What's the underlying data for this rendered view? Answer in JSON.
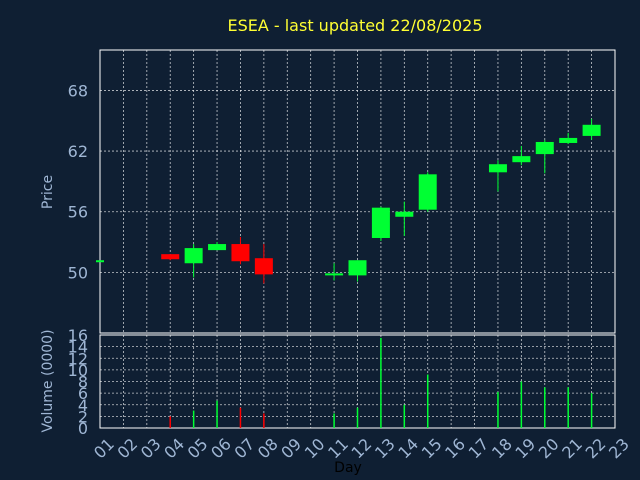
{
  "chart_data": [
    {
      "type": "candlestick",
      "title": "ESEA - last updated 22/08/2025",
      "xlabel": "Day",
      "ylabel": "Price",
      "ylim": [
        44,
        72
      ],
      "yticks": [
        50,
        56,
        62,
        68
      ],
      "grid": true,
      "colors": {
        "up": "#00ff33",
        "down": "#ff0000",
        "background": "#0f1f33",
        "title": "#ffff33",
        "ticks": "#9fb6d4"
      },
      "x_ticks": [
        "01",
        "02",
        "03",
        "04",
        "05",
        "06",
        "07",
        "08",
        "09",
        "10",
        "11",
        "12",
        "13",
        "14",
        "15",
        "16",
        "17",
        "18",
        "19",
        "20",
        "21",
        "22",
        "23"
      ],
      "candles": [
        {
          "day": "01",
          "open": 51.2,
          "high": 51.2,
          "low": 51.2,
          "close": 51.2
        },
        {
          "day": "04",
          "open": 51.8,
          "high": 51.8,
          "low": 51.2,
          "close": 51.3
        },
        {
          "day": "05",
          "open": 50.9,
          "high": 52.8,
          "low": 49.5,
          "close": 52.4
        },
        {
          "day": "06",
          "open": 52.2,
          "high": 53.0,
          "low": 52.2,
          "close": 52.8
        },
        {
          "day": "07",
          "open": 52.8,
          "high": 53.5,
          "low": 50.8,
          "close": 51.1
        },
        {
          "day": "08",
          "open": 51.4,
          "high": 52.8,
          "low": 48.9,
          "close": 49.8
        },
        {
          "day": "11",
          "open": 49.7,
          "high": 50.9,
          "low": 49.2,
          "close": 49.9
        },
        {
          "day": "12",
          "open": 49.7,
          "high": 51.2,
          "low": 49.1,
          "close": 51.2
        },
        {
          "day": "13",
          "open": 53.4,
          "high": 56.5,
          "low": 53.1,
          "close": 56.4
        },
        {
          "day": "14",
          "open": 55.5,
          "high": 57.0,
          "low": 53.6,
          "close": 56.0
        },
        {
          "day": "15",
          "open": 56.2,
          "high": 59.9,
          "low": 56.0,
          "close": 59.7
        },
        {
          "day": "18",
          "open": 59.9,
          "high": 61.1,
          "low": 58.0,
          "close": 60.7
        },
        {
          "day": "19",
          "open": 60.9,
          "high": 62.5,
          "low": 60.6,
          "close": 61.5
        },
        {
          "day": "20",
          "open": 61.7,
          "high": 63.1,
          "low": 59.8,
          "close": 62.9
        },
        {
          "day": "21",
          "open": 62.8,
          "high": 63.8,
          "low": 62.7,
          "close": 63.3
        },
        {
          "day": "22",
          "open": 63.5,
          "high": 65.2,
          "low": 63.1,
          "close": 64.6
        }
      ]
    },
    {
      "type": "bar",
      "ylabel": "Volume (0000)",
      "ylim": [
        0,
        16
      ],
      "yticks": [
        0,
        2,
        4,
        6,
        8,
        10,
        12,
        14,
        16
      ],
      "grid": true,
      "bars": [
        {
          "day": "04",
          "value": 2.0,
          "color": "#ff0000"
        },
        {
          "day": "05",
          "value": 3.0,
          "color": "#00ff33"
        },
        {
          "day": "06",
          "value": 4.7,
          "color": "#00ff33"
        },
        {
          "day": "07",
          "value": 3.5,
          "color": "#ff0000"
        },
        {
          "day": "08",
          "value": 2.5,
          "color": "#ff0000"
        },
        {
          "day": "11",
          "value": 2.5,
          "color": "#00ff33"
        },
        {
          "day": "12",
          "value": 3.5,
          "color": "#00ff33"
        },
        {
          "day": "13",
          "value": 15.5,
          "color": "#00ff33"
        },
        {
          "day": "14",
          "value": 4.0,
          "color": "#00ff33"
        },
        {
          "day": "15",
          "value": 9.2,
          "color": "#00ff33"
        },
        {
          "day": "18",
          "value": 6.2,
          "color": "#00ff33"
        },
        {
          "day": "19",
          "value": 8.0,
          "color": "#00ff33"
        },
        {
          "day": "20",
          "value": 7.0,
          "color": "#00ff33"
        },
        {
          "day": "21",
          "value": 7.0,
          "color": "#00ff33"
        },
        {
          "day": "22",
          "value": 6.0,
          "color": "#00ff33"
        }
      ]
    }
  ]
}
